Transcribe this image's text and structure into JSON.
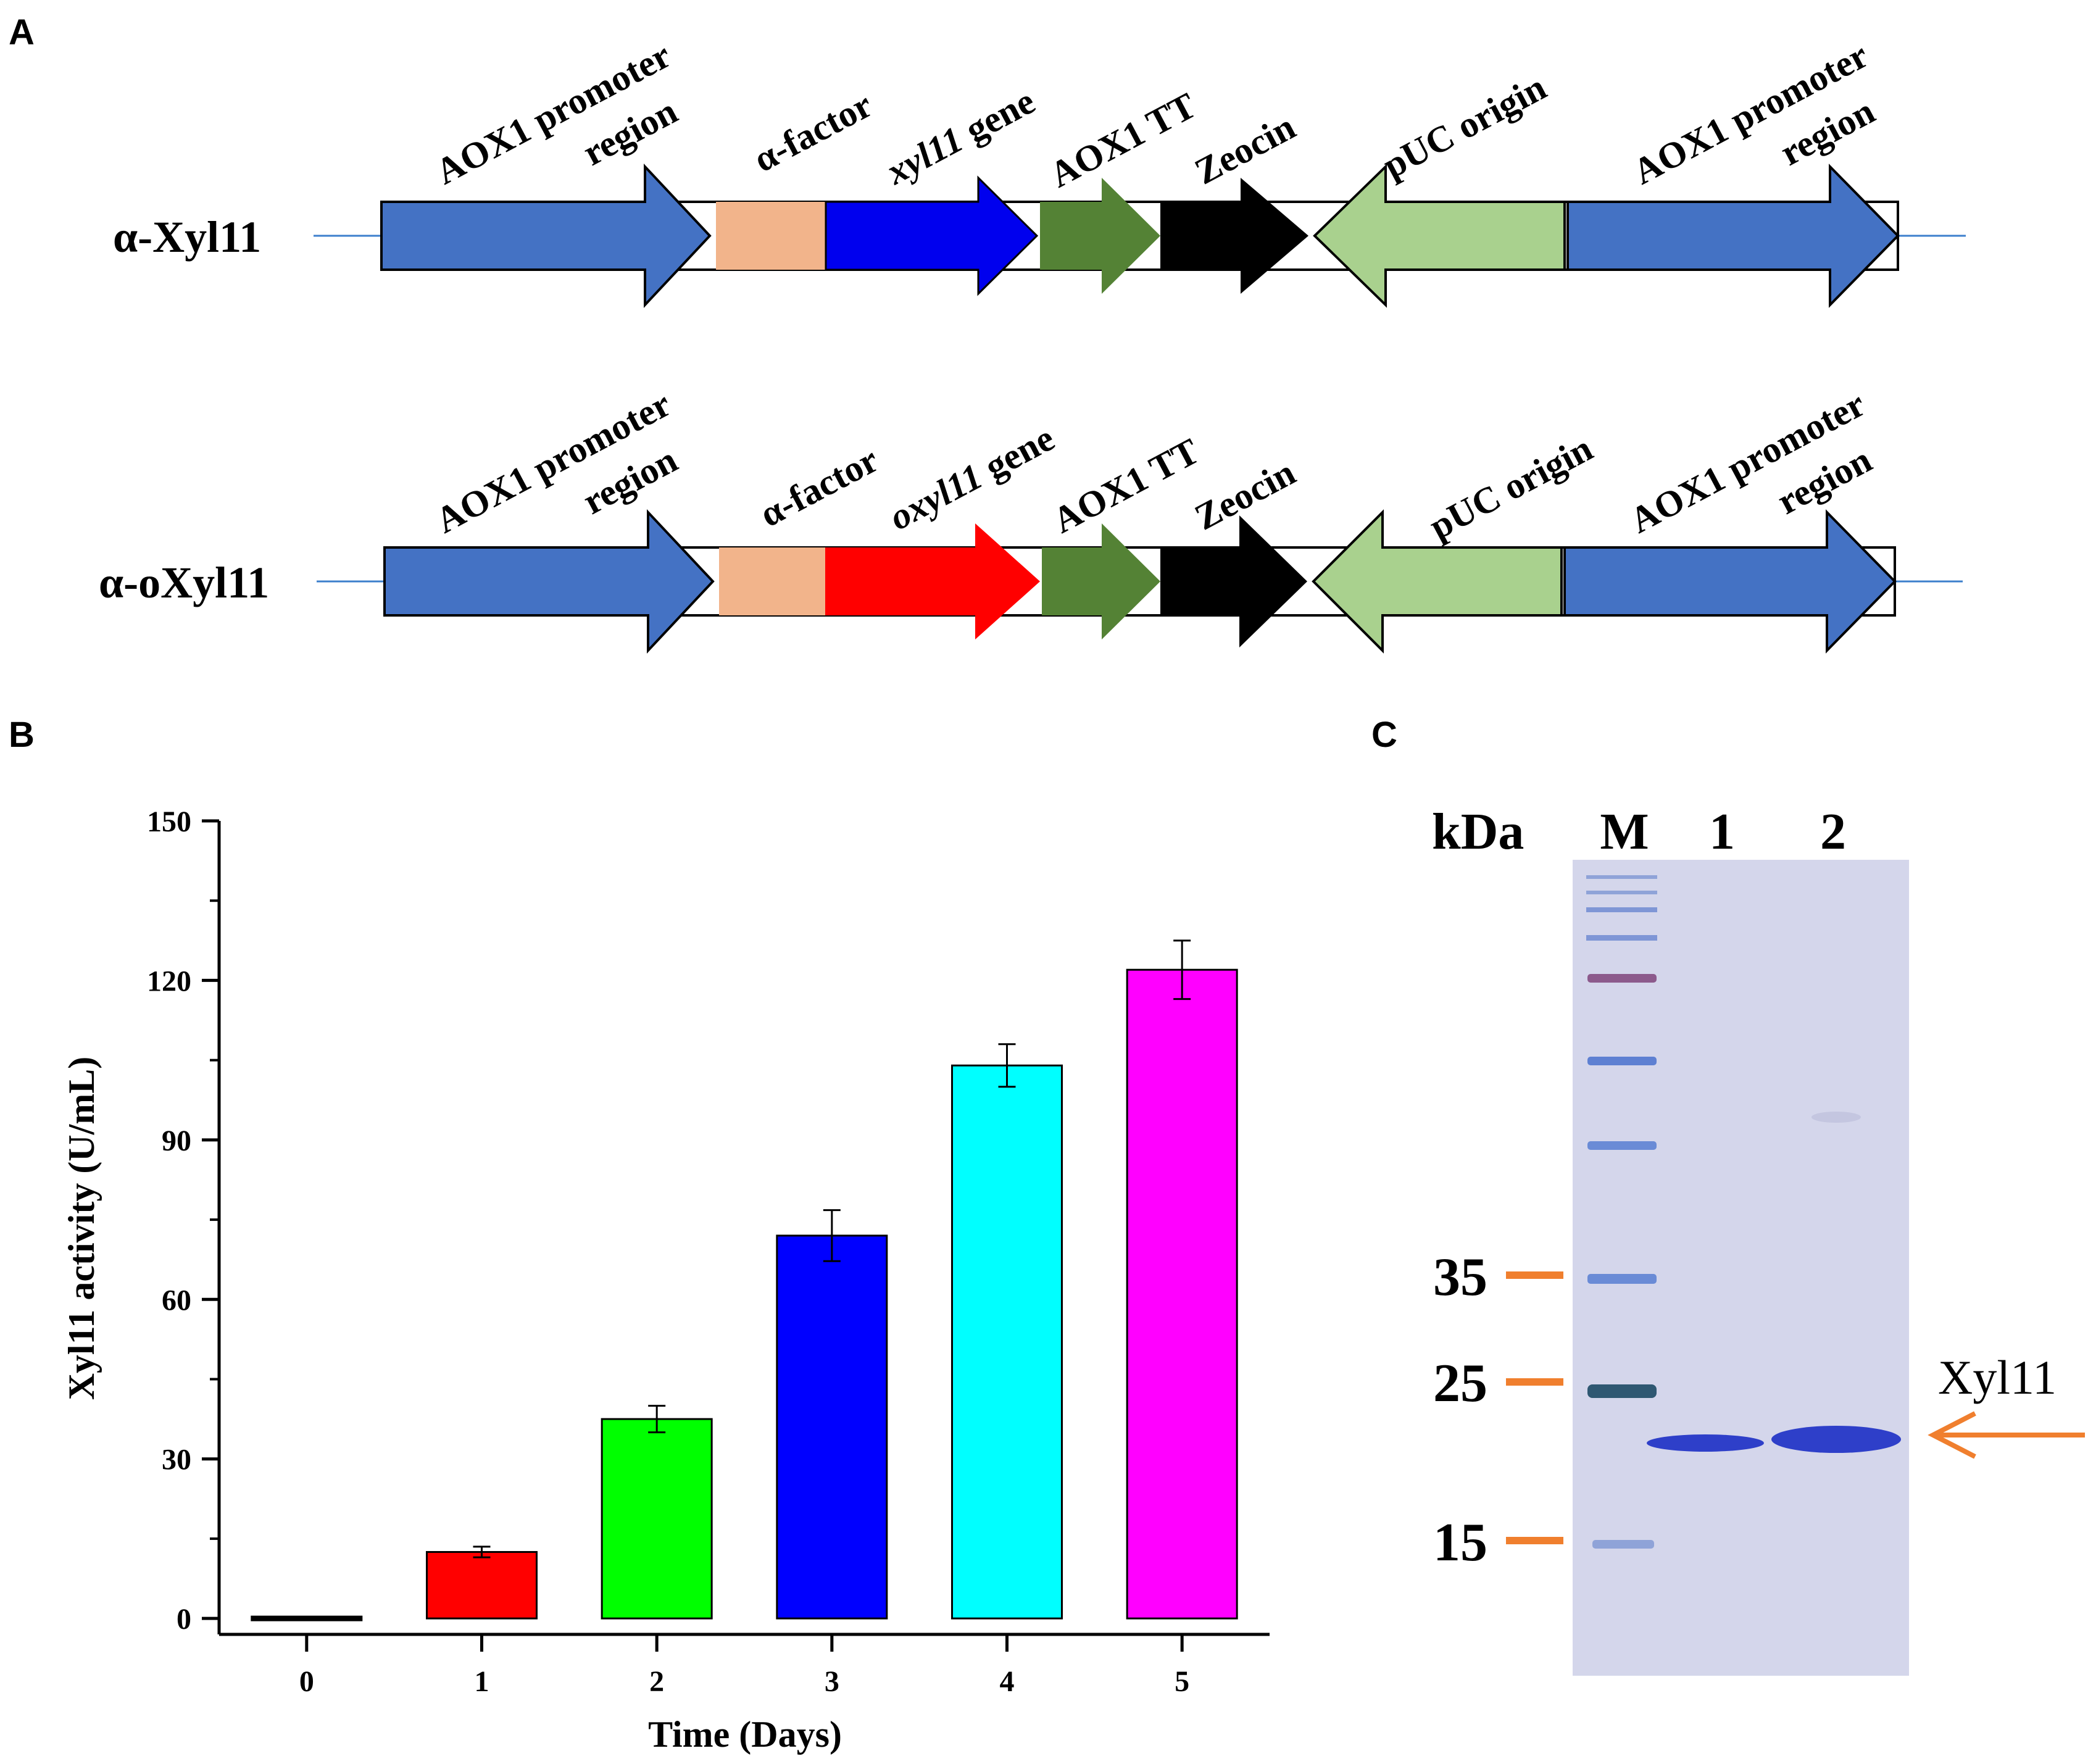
{
  "panels": {
    "a": "A",
    "b": "B",
    "c": "C"
  },
  "constructs": [
    {
      "name": "α-Xyl11",
      "features": [
        {
          "key": "aox1_promoter_left",
          "label_lines": [
            "AOX1 promoter",
            "region"
          ],
          "color": "#4472C4"
        },
        {
          "key": "alpha_factor",
          "label": "α-factor",
          "color": "#F2B48B"
        },
        {
          "key": "gene",
          "label_italic": "xyl11",
          "label_rest": " gene",
          "color": "#0000EE"
        },
        {
          "key": "aox1_tt",
          "label": "AOX1 TT",
          "color": "#548235"
        },
        {
          "key": "zeocin",
          "label": "Zeocin",
          "color": "#000000"
        },
        {
          "key": "puc_origin",
          "label": "pUC  origin",
          "color": "#A9D18E"
        },
        {
          "key": "aox1_promoter_right",
          "label_lines": [
            "AOX1 promoter",
            "region"
          ],
          "color": "#4472C4"
        }
      ]
    },
    {
      "name": "α-oXyl11",
      "features": [
        {
          "key": "aox1_promoter_left",
          "label_lines": [
            "AOX1 promoter",
            "region"
          ],
          "color": "#4472C4"
        },
        {
          "key": "alpha_factor",
          "label": "α-factor",
          "color": "#F2B48B"
        },
        {
          "key": "gene",
          "label_italic": "oxyl11",
          "label_rest": "  gene",
          "color": "#FF0000"
        },
        {
          "key": "aox1_tt",
          "label": "AOX1 TT",
          "color": "#548235"
        },
        {
          "key": "zeocin",
          "label": "Zeocin",
          "color": "#000000"
        },
        {
          "key": "puc_origin",
          "label": "pUC  origin",
          "color": "#A9D18E"
        },
        {
          "key": "aox1_promoter_right",
          "label_lines": [
            "AOX1 promoter",
            "region"
          ],
          "color": "#4472C4"
        }
      ]
    }
  ],
  "chart_data": {
    "type": "bar",
    "categories": [
      "0",
      "1",
      "2",
      "3",
      "4",
      "5"
    ],
    "values": [
      0,
      12.5,
      37.5,
      72,
      104,
      122
    ],
    "errors": [
      0,
      1,
      2.5,
      4.8,
      4,
      5.5
    ],
    "colors": [
      "#000000",
      "#FF0000",
      "#00FF00",
      "#0000FF",
      "#00FFFF",
      "#FF00FF"
    ],
    "xlabel": "Time (Days)",
    "ylabel": "Xyl11 activity (U/mL)",
    "ylim": [
      -3,
      150
    ],
    "yticks": [
      0,
      30,
      60,
      90,
      120,
      150
    ]
  },
  "gel": {
    "unit": "kDa",
    "lanes": [
      "M",
      "1",
      "2"
    ],
    "markers": [
      "35",
      "25",
      "15"
    ],
    "marker_color": "#F07F2E",
    "band_label": "Xyl11",
    "arrow_color": "#F07F2E",
    "gel_color": "#D4D6EB",
    "band_color": "#2E3FC9"
  }
}
